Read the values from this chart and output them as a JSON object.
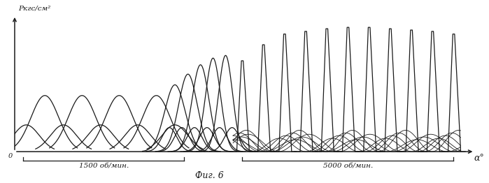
{
  "ylabel": "Pкгс/см²",
  "xlabel": "α°",
  "caption": "Фиг. 6",
  "label_1500": "1500 об/мин.",
  "label_5000": "5000 об/мин.",
  "bg_color": "#ffffff",
  "line_color": "#1a1a1a",
  "fig_width": 6.99,
  "fig_height": 2.62,
  "dpi": 100
}
